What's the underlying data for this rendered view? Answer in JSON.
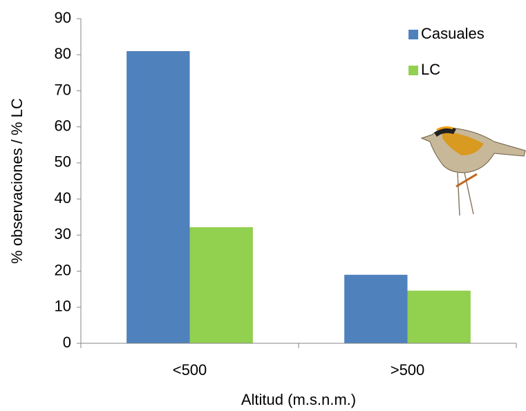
{
  "chart_data": {
    "type": "bar",
    "categories": [
      "<500",
      ">500"
    ],
    "series": [
      {
        "name": "Casuales",
        "color": "#4f81bd",
        "values": [
          81,
          19
        ]
      },
      {
        "name": "LC",
        "color": "#92d050",
        "values": [
          32.2,
          14.6
        ]
      }
    ],
    "ylabel": "% observaciones / % LC",
    "xlabel": "Altitud (m.s.n.m.)",
    "ylim": [
      0,
      90
    ],
    "yticks": [
      0,
      10,
      20,
      30,
      40,
      50,
      60,
      70,
      80,
      90
    ],
    "grid": false,
    "legend": "upper-right"
  }
}
